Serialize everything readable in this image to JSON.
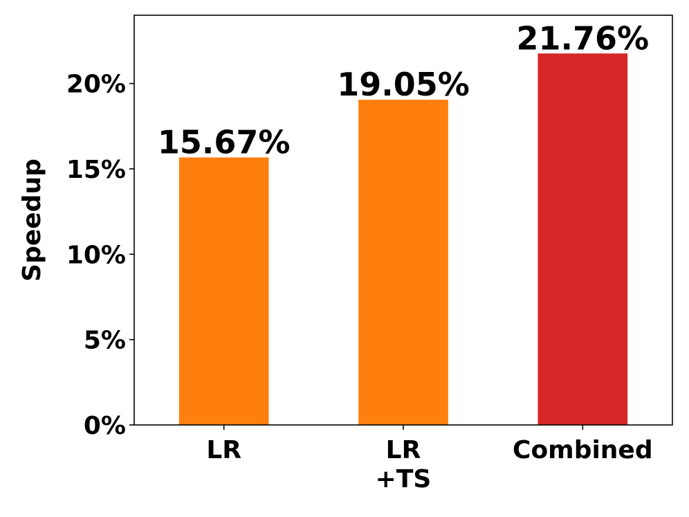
{
  "chart_data": {
    "type": "bar",
    "title": "",
    "xlabel": "",
    "ylabel": "Speedup",
    "categories": [
      {
        "lines": [
          "LR"
        ]
      },
      {
        "lines": [
          "LR",
          "+TS"
        ]
      },
      {
        "lines": [
          "Combined"
        ]
      }
    ],
    "values": [
      15.67,
      19.05,
      21.76
    ],
    "value_labels": [
      "15.67%",
      "19.05%",
      "21.76%"
    ],
    "bar_colors": [
      "#ff7f0e",
      "#ff7f0e",
      "#d62728"
    ],
    "yticks": [
      0,
      5,
      10,
      15,
      20
    ],
    "ytick_labels": [
      "0%",
      "5%",
      "10%",
      "15%",
      "20%"
    ],
    "ylim": [
      0,
      24
    ],
    "grid": false
  }
}
